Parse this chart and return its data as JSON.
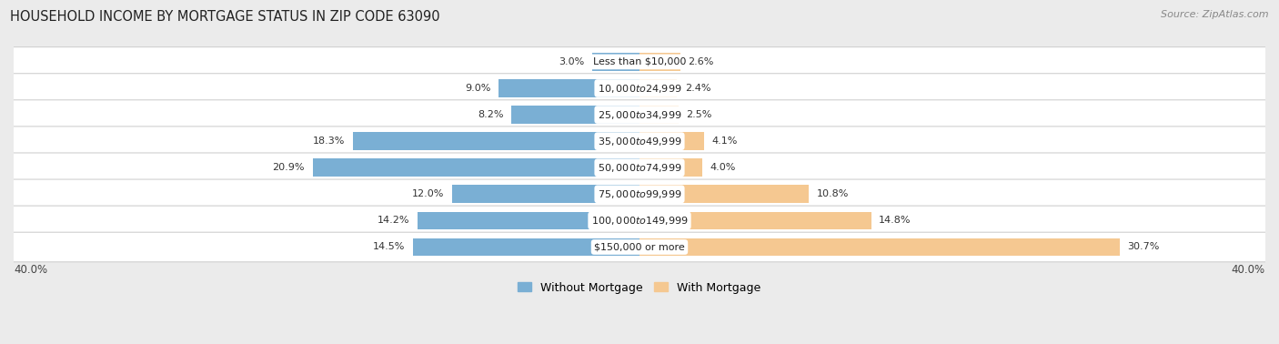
{
  "title": "HOUSEHOLD INCOME BY MORTGAGE STATUS IN ZIP CODE 63090",
  "source": "Source: ZipAtlas.com",
  "categories": [
    "Less than $10,000",
    "$10,000 to $24,999",
    "$25,000 to $34,999",
    "$35,000 to $49,999",
    "$50,000 to $74,999",
    "$75,000 to $99,999",
    "$100,000 to $149,999",
    "$150,000 or more"
  ],
  "without_mortgage": [
    3.0,
    9.0,
    8.2,
    18.3,
    20.9,
    12.0,
    14.2,
    14.5
  ],
  "with_mortgage": [
    2.6,
    2.4,
    2.5,
    4.1,
    4.0,
    10.8,
    14.8,
    30.7
  ],
  "color_without": "#7aafd4",
  "color_with": "#f5c891",
  "xlim": 40.0,
  "bg_color": "#ebebeb",
  "title_fontsize": 10.5,
  "label_fontsize": 8.0,
  "pct_fontsize": 8.0,
  "tick_fontsize": 8.5,
  "legend_fontsize": 9,
  "source_fontsize": 8
}
